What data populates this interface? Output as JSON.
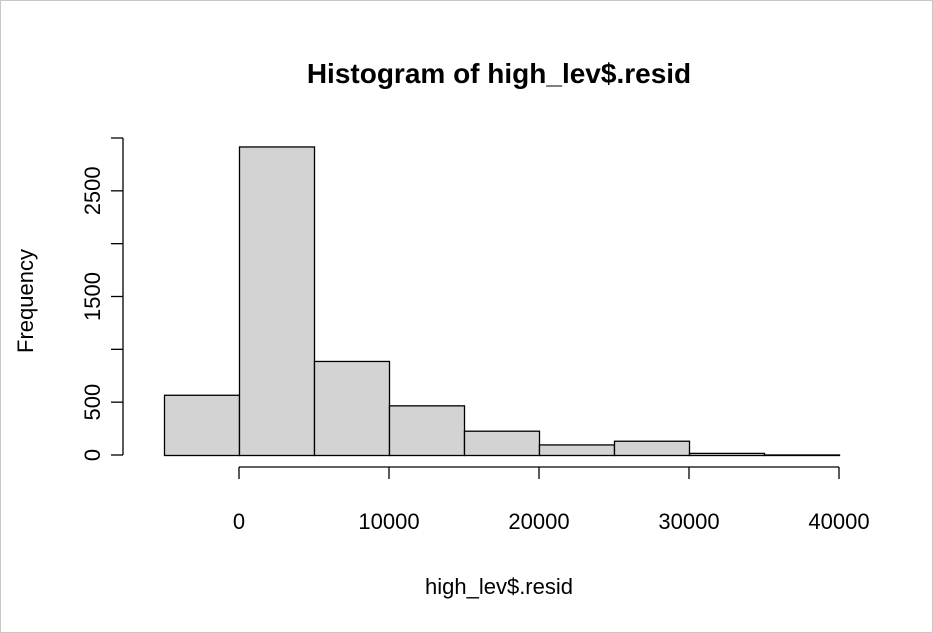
{
  "chart_data": {
    "type": "bar",
    "title": "Histogram of high_lev$.resid",
    "xlabel": "high_lev$.resid",
    "ylabel": "Frequency",
    "bins": [
      {
        "x0": -5000,
        "x1": 0,
        "count": 570
      },
      {
        "x0": 0,
        "x1": 5000,
        "count": 2920
      },
      {
        "x0": 5000,
        "x1": 10000,
        "count": 890
      },
      {
        "x0": 10000,
        "x1": 15000,
        "count": 470
      },
      {
        "x0": 15000,
        "x1": 20000,
        "count": 230
      },
      {
        "x0": 20000,
        "x1": 25000,
        "count": 100
      },
      {
        "x0": 25000,
        "x1": 30000,
        "count": 135
      },
      {
        "x0": 30000,
        "x1": 35000,
        "count": 20
      },
      {
        "x0": 35000,
        "x1": 40000,
        "count": 5
      }
    ],
    "xticks": [
      0,
      10000,
      20000,
      30000,
      40000
    ],
    "xtick_labels": [
      "0",
      "10000",
      "20000",
      "30000",
      "40000"
    ],
    "yticks": [
      0,
      500,
      1000,
      1500,
      2000,
      2500,
      3000
    ],
    "ytick_labels": [
      "0",
      "500",
      "",
      "1500",
      "",
      "2500",
      ""
    ],
    "xlim": [
      0,
      40000
    ],
    "ylim": [
      0,
      3000
    ],
    "bar_color": "#d3d3d3",
    "grid": false
  }
}
